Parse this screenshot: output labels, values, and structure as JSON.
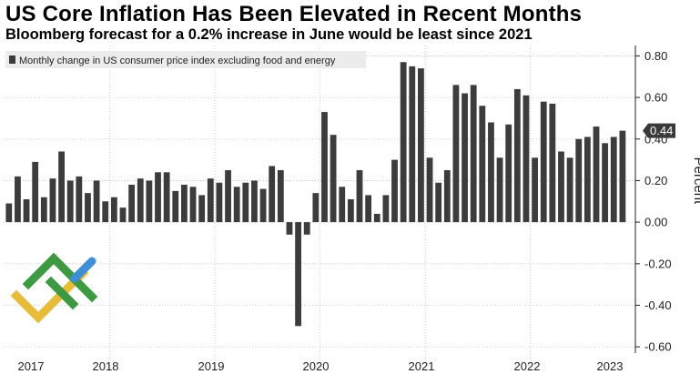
{
  "chart_data": {
    "type": "bar",
    "title": "US Core Inflation Has Been Elevated in Recent Months",
    "subtitle": "Bloomberg forecast for a 0.2% increase in June would be least since 2021",
    "legend": "Monthly change in US consumer price index excluding food and energy",
    "legend_position": "top-left",
    "ylabel": "Percent",
    "ylim": [
      -0.63,
      0.85
    ],
    "yticks": [
      0.8,
      0.6,
      0.4,
      0.2,
      0.0,
      -0.2,
      -0.4,
      -0.6
    ],
    "ytick_labels": [
      "0.80",
      "0.60",
      "0.40",
      "0.20",
      "0.00",
      "-0.20",
      "-0.40",
      "-0.60"
    ],
    "y_axis_side": "right",
    "xtick_labels": [
      "2017",
      "2018",
      "2019",
      "2020",
      "2021",
      "2022",
      "2023"
    ],
    "last_value_label": "0.44",
    "grid": "dotted",
    "bar_color": "#3c3c3c",
    "values": [
      0.09,
      0.22,
      0.11,
      0.29,
      0.12,
      0.21,
      0.34,
      0.2,
      0.22,
      0.14,
      0.2,
      0.1,
      0.12,
      0.07,
      0.18,
      0.21,
      0.2,
      0.24,
      0.24,
      0.15,
      0.18,
      0.17,
      0.13,
      0.21,
      0.19,
      0.25,
      0.17,
      0.19,
      0.2,
      0.16,
      0.27,
      0.25,
      -0.06,
      -0.5,
      -0.06,
      0.14,
      0.53,
      0.42,
      0.17,
      0.11,
      0.25,
      0.13,
      0.04,
      0.13,
      0.3,
      0.77,
      0.75,
      0.74,
      0.31,
      0.19,
      0.25,
      0.66,
      0.62,
      0.66,
      0.56,
      0.48,
      0.31,
      0.47,
      0.64,
      0.61,
      0.31,
      0.58,
      0.57,
      0.34,
      0.31,
      0.4,
      0.41,
      0.46,
      0.38,
      0.41,
      0.44
    ]
  }
}
